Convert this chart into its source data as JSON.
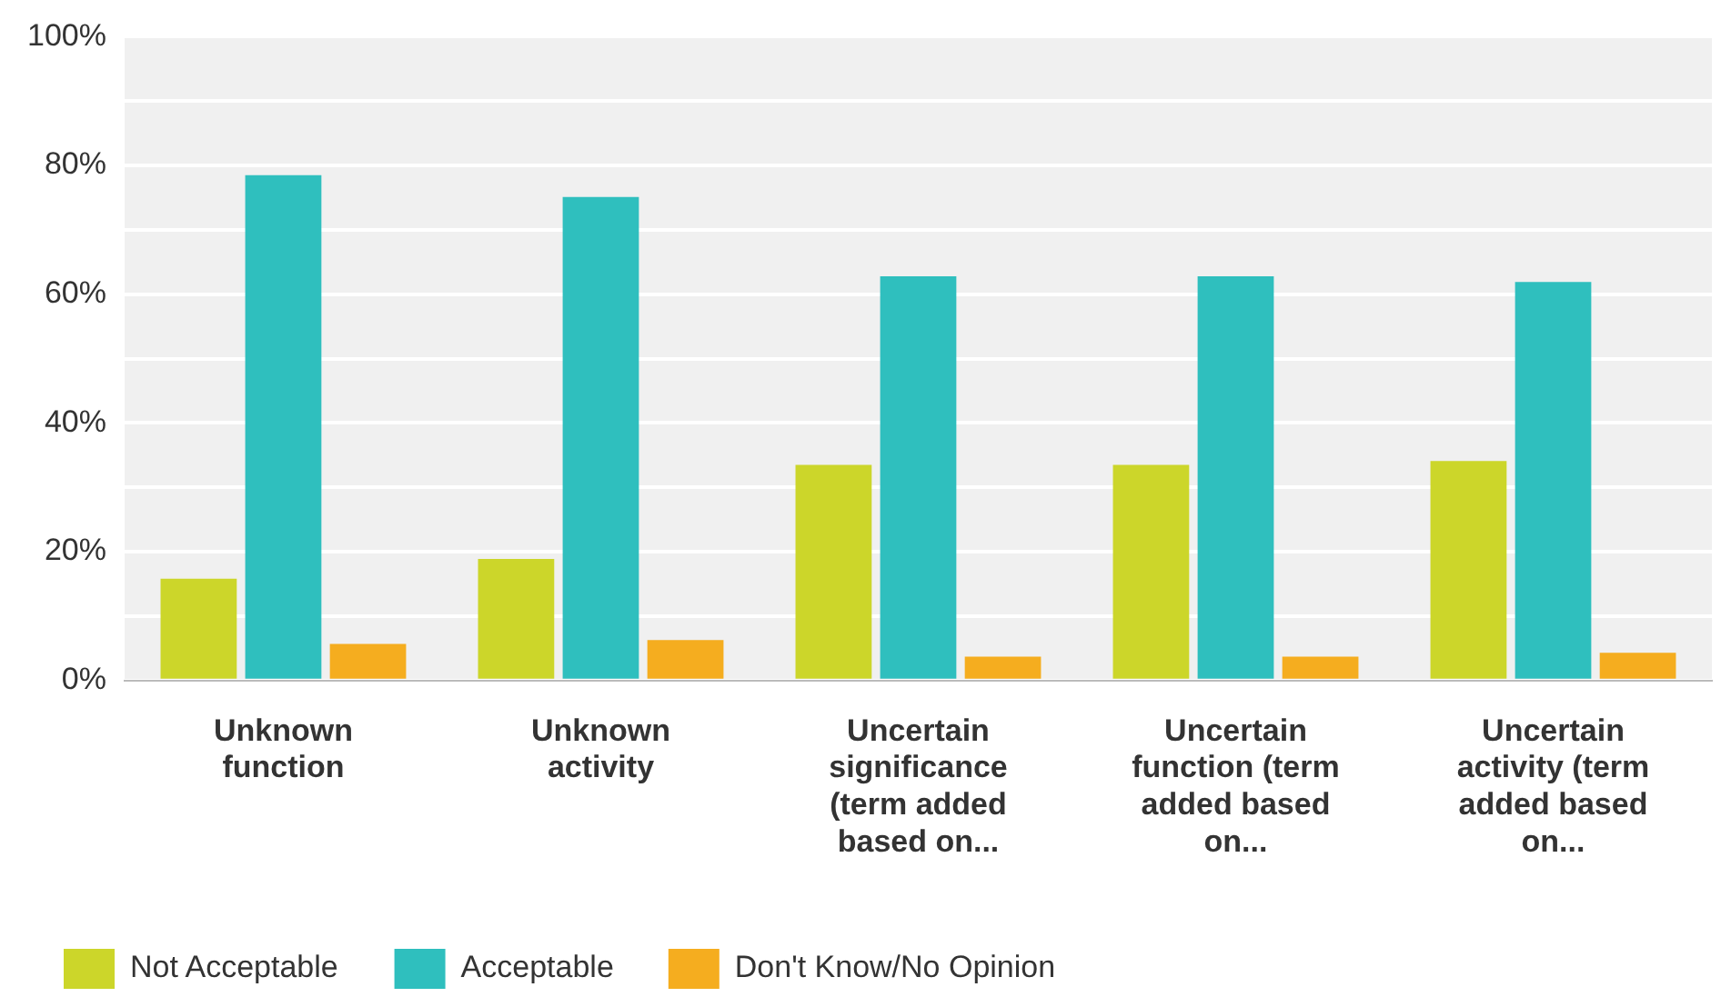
{
  "chart_data": {
    "type": "bar",
    "categories": [
      "Unknown function",
      "Unknown activity",
      "Uncertain significance (term added based on...",
      "Uncertain function (term added based on...",
      "Uncertain activity (term added based on..."
    ],
    "series": [
      {
        "name": "Not Acceptable",
        "color": "#ccd62a",
        "values": [
          15.8,
          18.9,
          33.5,
          33.5,
          34.1
        ]
      },
      {
        "name": "Acceptable",
        "color": "#2fbfbe",
        "values": [
          78.5,
          75.1,
          62.8,
          62.8,
          61.9
        ]
      },
      {
        "name": "Don't Know/No Opinion",
        "color": "#f5ad1f",
        "values": [
          5.7,
          6.3,
          3.7,
          3.7,
          4.3
        ]
      }
    ],
    "ylim": [
      0,
      100
    ],
    "yticks": [
      {
        "value": 0,
        "label": "0%"
      },
      {
        "value": 10,
        "label": null
      },
      {
        "value": 20,
        "label": "20%"
      },
      {
        "value": 30,
        "label": null
      },
      {
        "value": 40,
        "label": "40%"
      },
      {
        "value": 50,
        "label": null
      },
      {
        "value": 60,
        "label": "60%"
      },
      {
        "value": 70,
        "label": null
      },
      {
        "value": 80,
        "label": "80%"
      },
      {
        "value": 90,
        "label": null
      },
      {
        "value": 100,
        "label": "100%"
      }
    ],
    "grid": "y",
    "legend": "bottom"
  }
}
